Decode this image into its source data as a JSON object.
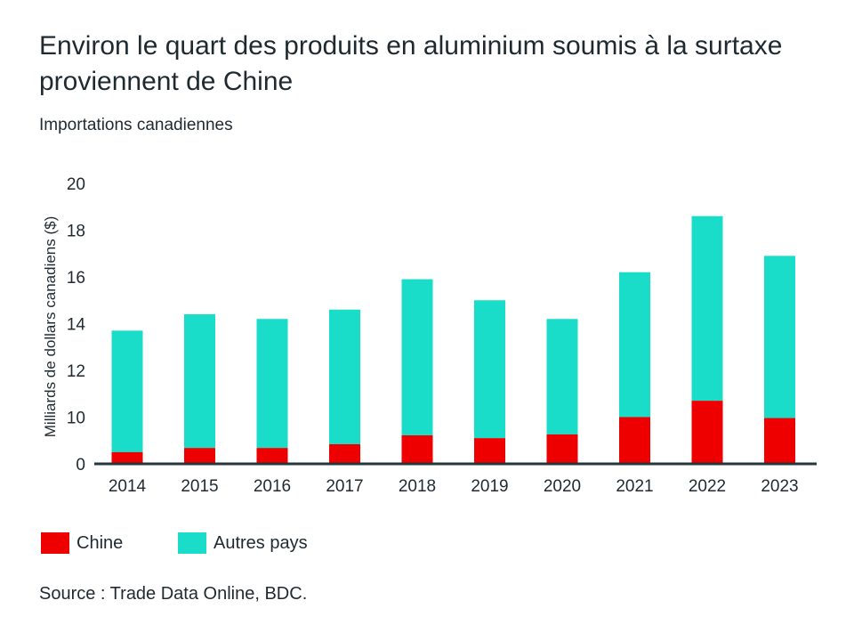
{
  "header": {
    "title": "Environ le quart des produits en aluminium soumis à la surtaxe proviennent de Chine",
    "subtitle": "Importations canadiennes"
  },
  "chart_data": {
    "type": "bar",
    "stacked": true,
    "title": "Environ le quart des produits en aluminium soumis à la surtaxe proviennent de Chine",
    "subtitle": "Importations canadiennes",
    "xlabel": "",
    "ylabel": "Milliards de dollars canadiens ($)",
    "yticks": [
      0,
      10,
      12,
      14,
      16,
      18,
      20
    ],
    "ylim": [
      0,
      20
    ],
    "grid": false,
    "legend_position": "bottom-left",
    "categories": [
      "2014",
      "2015",
      "2016",
      "2017",
      "2018",
      "2019",
      "2020",
      "2021",
      "2022",
      "2023"
    ],
    "series": [
      {
        "name": "Chine",
        "color": "#ee0000",
        "values": [
          2.5,
          3.4,
          3.4,
          4.2,
          6.1,
          5.5,
          6.3,
          10.0,
          10.7,
          9.8
        ]
      },
      {
        "name": "Autres pays",
        "color": "#19ddc8",
        "totals": [
          13.7,
          14.4,
          14.2,
          14.6,
          15.9,
          15.0,
          14.2,
          16.2,
          18.6,
          16.9
        ]
      }
    ]
  },
  "source": "Source : Trade Data Online, BDC."
}
